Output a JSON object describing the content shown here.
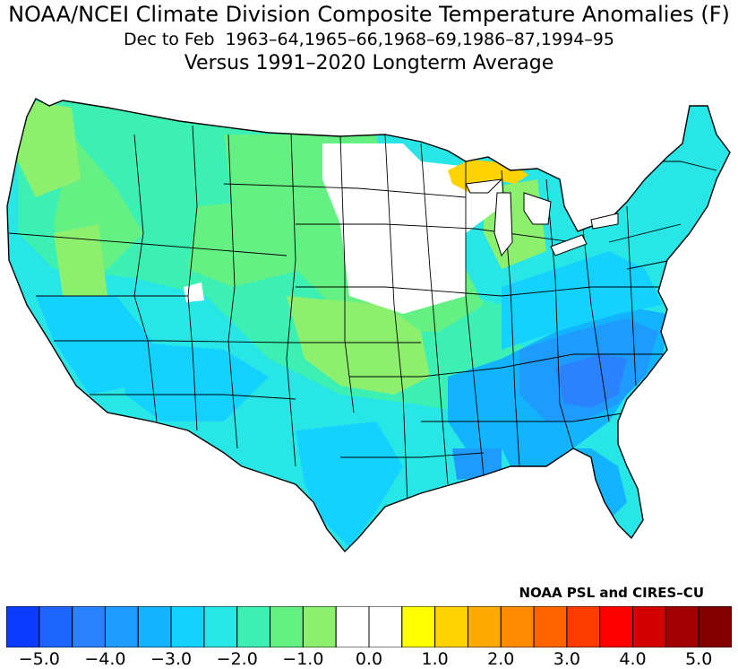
{
  "titles": {
    "line1": "NOAA/NCEI Climate Division Composite Temperature Anomalies (F)",
    "line2": "Dec to Feb  1963–64,1965–66,1968–69,1986–87,1994–95",
    "line3": "Versus 1991–2020 Longterm Average"
  },
  "credit": "NOAA PSL and CIRES–CU",
  "colorbar": {
    "colors": [
      "#0a3cff",
      "#1e64ff",
      "#2a82ff",
      "#1e9bff",
      "#12b4ff",
      "#14d2ff",
      "#28e6e6",
      "#3cf0b4",
      "#64f082",
      "#8cf06e",
      "#ffffff",
      "#ffffff",
      "#ffff00",
      "#ffd200",
      "#ffaa00",
      "#ff8c00",
      "#ff6400",
      "#ff3c00",
      "#ff0000",
      "#d20000",
      "#a00000",
      "#820000"
    ],
    "tick_labels": [
      "−5.0",
      "−4.0",
      "−3.0",
      "−2.0",
      "−1.0",
      "0.0",
      "1.0",
      "2.0",
      "3.0",
      "4.0",
      "5.0"
    ]
  }
}
